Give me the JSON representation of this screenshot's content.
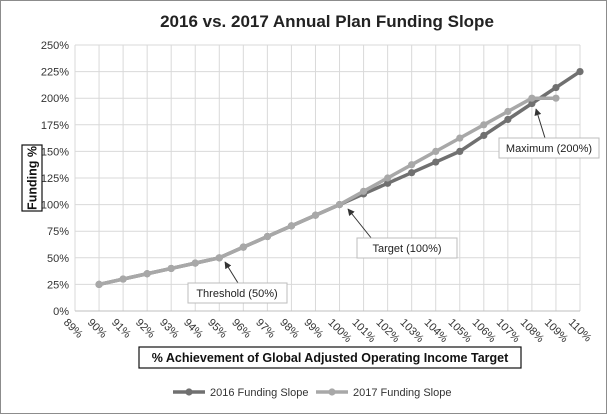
{
  "chart_data": {
    "type": "line",
    "title": "2016 vs. 2017 Annual Plan Funding Slope",
    "xlabel": "% Achievement of Global Adjusted Operating Income Target",
    "ylabel": "Funding %",
    "x_ticks": [
      "89%",
      "90%",
      "91%",
      "92%",
      "93%",
      "94%",
      "95%",
      "96%",
      "97%",
      "98%",
      "99%",
      "100%",
      "101%",
      "102%",
      "103%",
      "104%",
      "105%",
      "106%",
      "107%",
      "108%",
      "109%",
      "110%"
    ],
    "x_range": [
      89,
      110
    ],
    "y_ticks": [
      "0%",
      "25%",
      "50%",
      "75%",
      "100%",
      "125%",
      "150%",
      "175%",
      "200%",
      "225%",
      "250%"
    ],
    "y_range": [
      0,
      250
    ],
    "grid": true,
    "legend_position": "bottom",
    "series": [
      {
        "name": "2016 Funding Slope",
        "color": "#707070",
        "x": [
          90,
          91,
          92,
          93,
          94,
          95,
          96,
          97,
          98,
          99,
          100,
          101,
          102,
          103,
          104,
          105,
          106,
          107,
          108,
          109,
          110
        ],
        "values": [
          25,
          30,
          35,
          40,
          45,
          50,
          60,
          70,
          80,
          90,
          100,
          110,
          120,
          130,
          140,
          150,
          165,
          180,
          195,
          210,
          225
        ]
      },
      {
        "name": "2017 Funding Slope",
        "color": "#a8a8a8",
        "x": [
          90,
          91,
          92,
          93,
          94,
          95,
          96,
          97,
          98,
          99,
          100,
          101,
          102,
          103,
          104,
          105,
          106,
          107,
          108,
          109
        ],
        "values": [
          25,
          30,
          35,
          40,
          45,
          50,
          60,
          70,
          80,
          90,
          100,
          112.5,
          125,
          137.5,
          150,
          162.5,
          175,
          187.5,
          200,
          200
        ]
      }
    ],
    "annotations": [
      {
        "label": "Threshold (50%)",
        "x": 95,
        "y": 50
      },
      {
        "label": "Target (100%)",
        "x": 100,
        "y": 100
      },
      {
        "label": "Maximum (200%)",
        "x": 108,
        "y": 200
      }
    ]
  }
}
